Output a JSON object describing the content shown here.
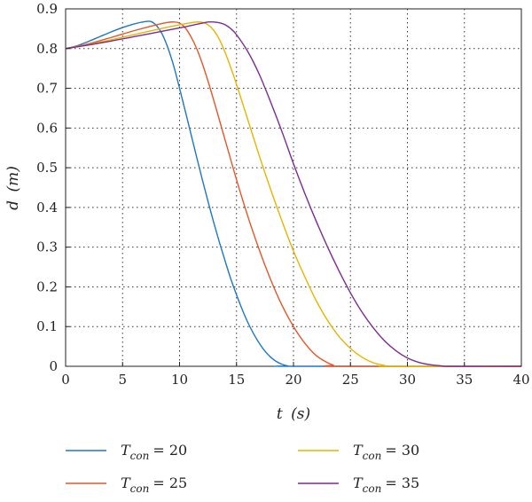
{
  "chart_data": {
    "type": "line",
    "xlabel_var": "t",
    "xlabel_unit": "(s)",
    "ylabel_var": "d",
    "ylabel_unit": "(m)",
    "xlim": [
      0,
      40
    ],
    "ylim": [
      0,
      0.9
    ],
    "x_ticks": [
      "0",
      "5",
      "10",
      "15",
      "20",
      "25",
      "30",
      "35",
      "40"
    ],
    "y_ticks": [
      "0",
      "0.1",
      "0.2",
      "0.3",
      "0.4",
      "0.5",
      "0.6",
      "0.7",
      "0.8",
      "0.9"
    ],
    "grid": true,
    "legend_position": "below",
    "series": [
      {
        "name_var": "T",
        "name_sub": "con",
        "name_value": "= 20",
        "color": "#1f77c4",
        "points": [
          [
            0,
            0.8
          ],
          [
            1,
            0.807
          ],
          [
            2,
            0.818
          ],
          [
            3,
            0.83
          ],
          [
            4,
            0.842
          ],
          [
            5,
            0.853
          ],
          [
            6,
            0.862
          ],
          [
            7,
            0.868
          ],
          [
            7.5,
            0.868
          ],
          [
            8,
            0.857
          ],
          [
            8.5,
            0.835
          ],
          [
            9,
            0.8
          ],
          [
            9.5,
            0.755
          ],
          [
            10,
            0.7
          ],
          [
            10.5,
            0.643
          ],
          [
            11,
            0.585
          ],
          [
            11.5,
            0.527
          ],
          [
            12,
            0.47
          ],
          [
            12.5,
            0.415
          ],
          [
            13,
            0.362
          ],
          [
            13.5,
            0.312
          ],
          [
            14,
            0.265
          ],
          [
            14.5,
            0.22
          ],
          [
            15,
            0.18
          ],
          [
            15.5,
            0.143
          ],
          [
            16,
            0.11
          ],
          [
            16.5,
            0.082
          ],
          [
            17,
            0.058
          ],
          [
            17.5,
            0.038
          ],
          [
            18,
            0.023
          ],
          [
            18.5,
            0.012
          ],
          [
            19,
            0.005
          ],
          [
            19.5,
            0.001
          ],
          [
            20,
            0
          ],
          [
            40,
            0
          ]
        ]
      },
      {
        "name_var": "T",
        "name_sub": "con",
        "name_value": "= 25",
        "color": "#e2572a",
        "points": [
          [
            0,
            0.8
          ],
          [
            2,
            0.812
          ],
          [
            4,
            0.828
          ],
          [
            6,
            0.845
          ],
          [
            8,
            0.86
          ],
          [
            9,
            0.866
          ],
          [
            9.5,
            0.867
          ],
          [
            10,
            0.864
          ],
          [
            10.5,
            0.852
          ],
          [
            11,
            0.83
          ],
          [
            11.5,
            0.8
          ],
          [
            12,
            0.762
          ],
          [
            12.5,
            0.718
          ],
          [
            13,
            0.67
          ],
          [
            13.5,
            0.62
          ],
          [
            14,
            0.57
          ],
          [
            15,
            0.47
          ],
          [
            16,
            0.377
          ],
          [
            17,
            0.293
          ],
          [
            18,
            0.218
          ],
          [
            19,
            0.153
          ],
          [
            20,
            0.1
          ],
          [
            21,
            0.058
          ],
          [
            22,
            0.027
          ],
          [
            23,
            0.009
          ],
          [
            23.5,
            0.003
          ],
          [
            24,
            0
          ],
          [
            40,
            0
          ]
        ]
      },
      {
        "name_var": "T",
        "name_sub": "con",
        "name_value": "= 30",
        "color": "#e6b400",
        "points": [
          [
            0,
            0.8
          ],
          [
            2,
            0.81
          ],
          [
            4,
            0.822
          ],
          [
            6,
            0.835
          ],
          [
            8,
            0.848
          ],
          [
            10,
            0.86
          ],
          [
            11,
            0.865
          ],
          [
            11.5,
            0.867
          ],
          [
            12,
            0.866
          ],
          [
            12.5,
            0.86
          ],
          [
            13,
            0.846
          ],
          [
            13.5,
            0.823
          ],
          [
            14,
            0.79
          ],
          [
            14.5,
            0.752
          ],
          [
            15,
            0.71
          ],
          [
            16,
            0.62
          ],
          [
            17,
            0.53
          ],
          [
            18,
            0.445
          ],
          [
            19,
            0.365
          ],
          [
            20,
            0.29
          ],
          [
            21,
            0.225
          ],
          [
            22,
            0.165
          ],
          [
            23,
            0.115
          ],
          [
            24,
            0.075
          ],
          [
            25,
            0.045
          ],
          [
            26,
            0.023
          ],
          [
            27,
            0.009
          ],
          [
            28,
            0.002
          ],
          [
            28.5,
            0
          ],
          [
            40,
            0
          ]
        ]
      },
      {
        "name_var": "T",
        "name_sub": "con",
        "name_value": "= 35",
        "color": "#7b2c92",
        "points": [
          [
            0,
            0.8
          ],
          [
            2,
            0.809
          ],
          [
            4,
            0.819
          ],
          [
            6,
            0.83
          ],
          [
            8,
            0.841
          ],
          [
            10,
            0.852
          ],
          [
            11,
            0.858
          ],
          [
            12,
            0.864
          ],
          [
            12.5,
            0.867
          ],
          [
            13,
            0.867
          ],
          [
            13.5,
            0.865
          ],
          [
            14,
            0.86
          ],
          [
            14.5,
            0.85
          ],
          [
            15,
            0.835
          ],
          [
            16,
            0.792
          ],
          [
            17,
            0.735
          ],
          [
            18,
            0.665
          ],
          [
            19,
            0.59
          ],
          [
            20,
            0.51
          ],
          [
            21,
            0.435
          ],
          [
            22,
            0.365
          ],
          [
            23,
            0.3
          ],
          [
            24,
            0.24
          ],
          [
            25,
            0.185
          ],
          [
            26,
            0.137
          ],
          [
            27,
            0.097
          ],
          [
            28,
            0.064
          ],
          [
            29,
            0.039
          ],
          [
            30,
            0.021
          ],
          [
            31,
            0.01
          ],
          [
            32,
            0.004
          ],
          [
            33,
            0.001
          ],
          [
            34,
            0
          ],
          [
            40,
            0
          ]
        ]
      }
    ]
  }
}
